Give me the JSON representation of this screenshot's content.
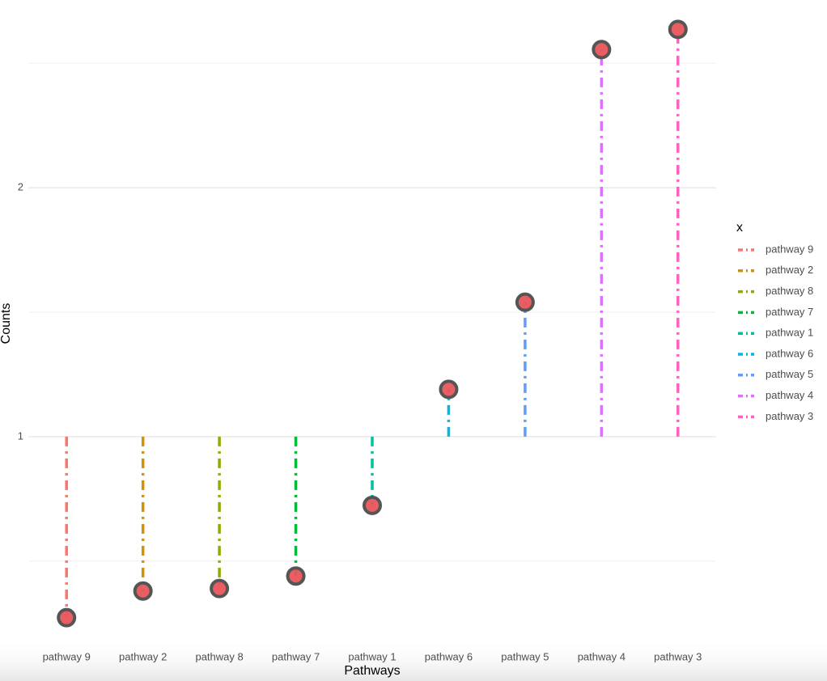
{
  "chart_data": {
    "type": "lollipop",
    "x_label": "Pathways",
    "y_label": "Counts",
    "categories": [
      "pathway 9",
      "pathway 2",
      "pathway 8",
      "pathway 7",
      "pathway 1",
      "pathway 6",
      "pathway 5",
      "pathway 4",
      "pathway 3"
    ],
    "values": [
      0.273,
      0.38,
      0.39,
      0.44,
      0.724,
      1.19,
      1.54,
      2.555,
      2.636
    ],
    "colors": [
      "#F8766D",
      "#D39200",
      "#93AA00",
      "#00BA38",
      "#00C19F",
      "#00B9E3",
      "#619CFF",
      "#DB72FB",
      "#FF61C3"
    ],
    "baseline": 1,
    "point_color": "#e8555a",
    "ylim": [
      0.155,
      2.754
    ],
    "yticks": [
      1,
      2
    ],
    "y_minor_grid": [
      0.5,
      1.5,
      2.5
    ],
    "grid": true,
    "legend_title": "x",
    "legend_position": "right"
  }
}
